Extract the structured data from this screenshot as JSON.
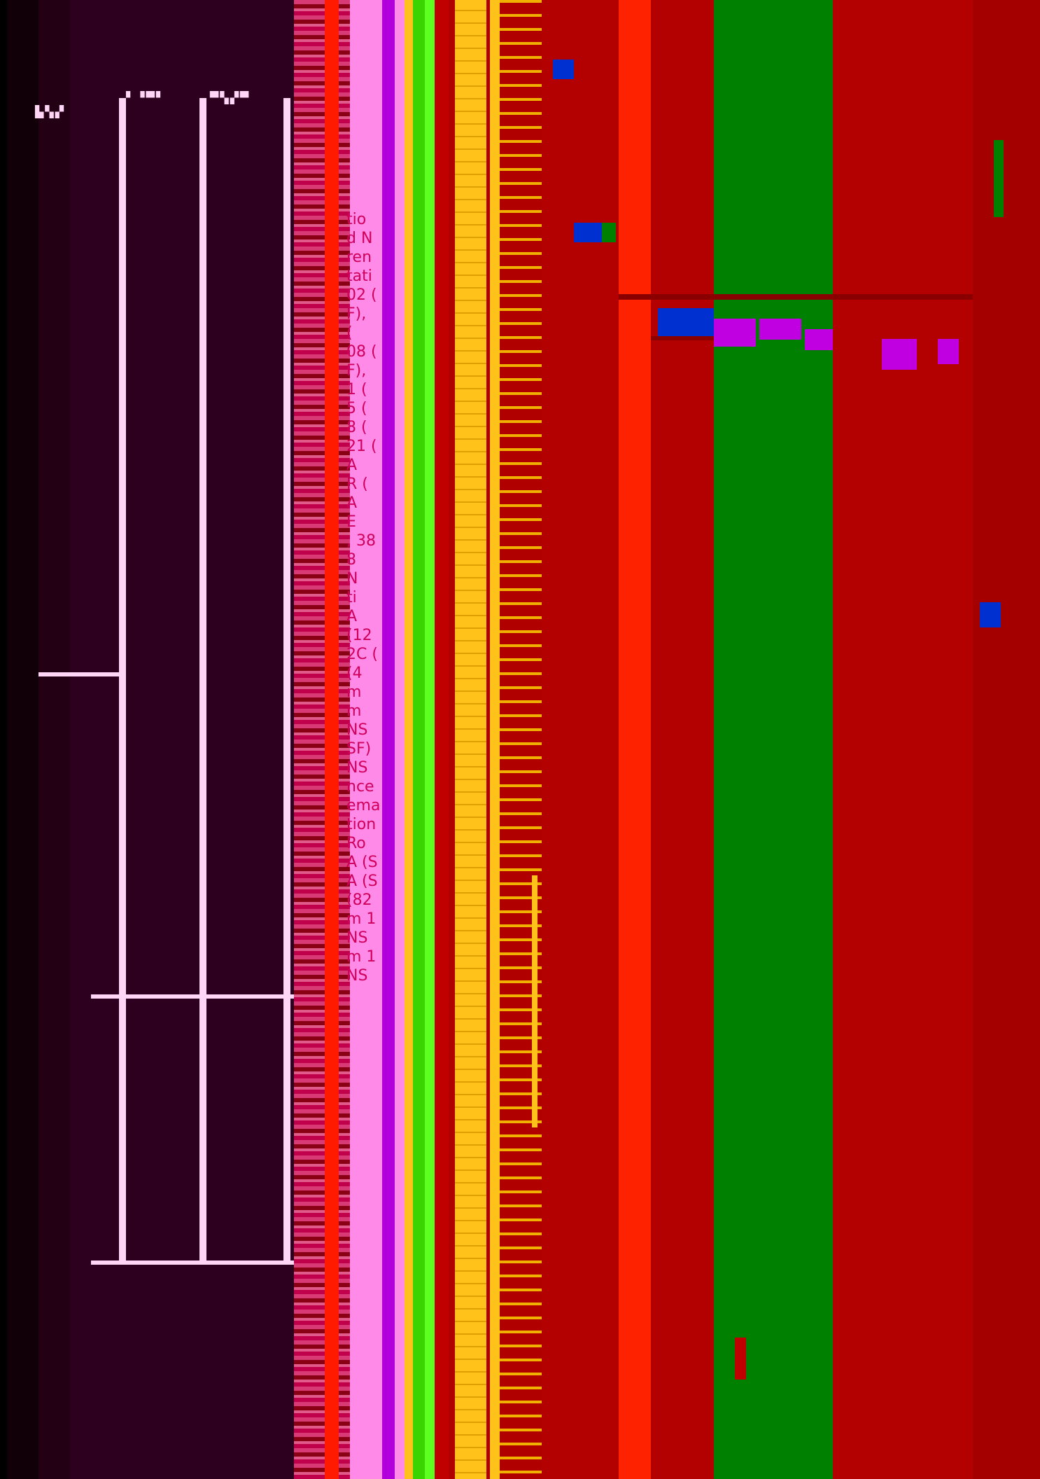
{
  "left_panel": {
    "fragments": [
      "tio",
      "d N",
      "ren",
      "tati",
      "02 (",
      "F),",
      "(",
      "08 (",
      "F),",
      "1 (",
      "5 (",
      "8 (",
      "21 (",
      "A",
      "R (",
      "A",
      "E",
      ", 38",
      "8",
      "N",
      "ti",
      "A",
      "(12",
      "2C (",
      "(4",
      "m",
      "m",
      "NS",
      "SF)",
      "NS",
      "nce",
      "ema",
      "tion",
      "Ro",
      "A (S",
      "A (S",
      "(82",
      "m 1",
      "NS",
      "m 1",
      "NS"
    ]
  },
  "colors": {
    "dark_panel": "#2d0020",
    "pink": "#ff8ae8",
    "red": "#b30000",
    "bright_red": "#ff2200",
    "green": "#008000",
    "yellow": "#ffc21a",
    "lime": "#5cff20",
    "magenta": "#b100dc"
  }
}
